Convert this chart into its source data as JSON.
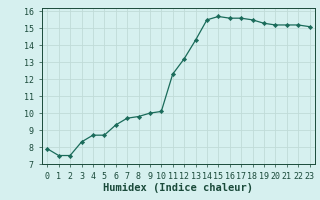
{
  "x": [
    0,
    1,
    2,
    3,
    4,
    5,
    6,
    7,
    8,
    9,
    10,
    11,
    12,
    13,
    14,
    15,
    16,
    17,
    18,
    19,
    20,
    21,
    22,
    23
  ],
  "y": [
    7.9,
    7.5,
    7.5,
    8.3,
    8.7,
    8.7,
    9.3,
    9.7,
    9.8,
    10.0,
    10.1,
    12.3,
    13.2,
    14.3,
    15.5,
    15.7,
    15.6,
    15.6,
    15.5,
    15.3,
    15.2,
    15.2,
    15.2,
    15.1
  ],
  "line_color": "#1a6b5a",
  "marker": "D",
  "marker_size": 2.2,
  "bg_color": "#d6f0ef",
  "grid_color": "#c0dbd8",
  "xlabel": "Humidex (Indice chaleur)",
  "xlabel_color": "#1a4a3a",
  "xlim": [
    -0.5,
    23.5
  ],
  "ylim": [
    7.0,
    16.2
  ],
  "yticks": [
    7,
    8,
    9,
    10,
    11,
    12,
    13,
    14,
    15,
    16
  ],
  "xticks": [
    0,
    1,
    2,
    3,
    4,
    5,
    6,
    7,
    8,
    9,
    10,
    11,
    12,
    13,
    14,
    15,
    16,
    17,
    18,
    19,
    20,
    21,
    22,
    23
  ],
  "tick_color": "#1a4a3a",
  "tick_fontsize": 6.0,
  "xlabel_fontsize": 7.5
}
